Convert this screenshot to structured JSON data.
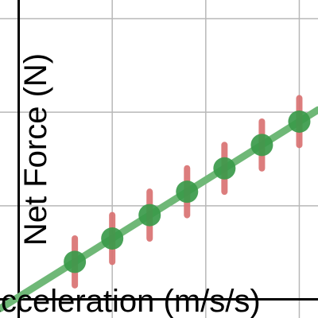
{
  "chart_data": {
    "type": "scatter",
    "title": "",
    "xlabel": "Acceleration (m/s/s)",
    "ylabel": "Net Force (N)",
    "xlim": [
      -0.2,
      3.2
    ],
    "ylim": [
      -0.2,
      3.2
    ],
    "grid": true,
    "series": [
      {
        "x": [
          0.6,
          1.0,
          1.4,
          1.8,
          2.2,
          2.6,
          3.0
        ],
        "y": [
          0.4,
          0.65,
          0.9,
          1.15,
          1.4,
          1.65,
          1.9
        ],
        "yerr": [
          0.25,
          0.25,
          0.25,
          0.25,
          0.25,
          0.25,
          0.25
        ]
      }
    ],
    "fit_line": {
      "slope": 0.625,
      "intercept": 0.025
    },
    "colors": {
      "points": "#3a9a4a",
      "fit_line": "#6fb877",
      "error_bars": "#d97070",
      "grid": "#b8b8b8",
      "axes": "#000000"
    }
  }
}
